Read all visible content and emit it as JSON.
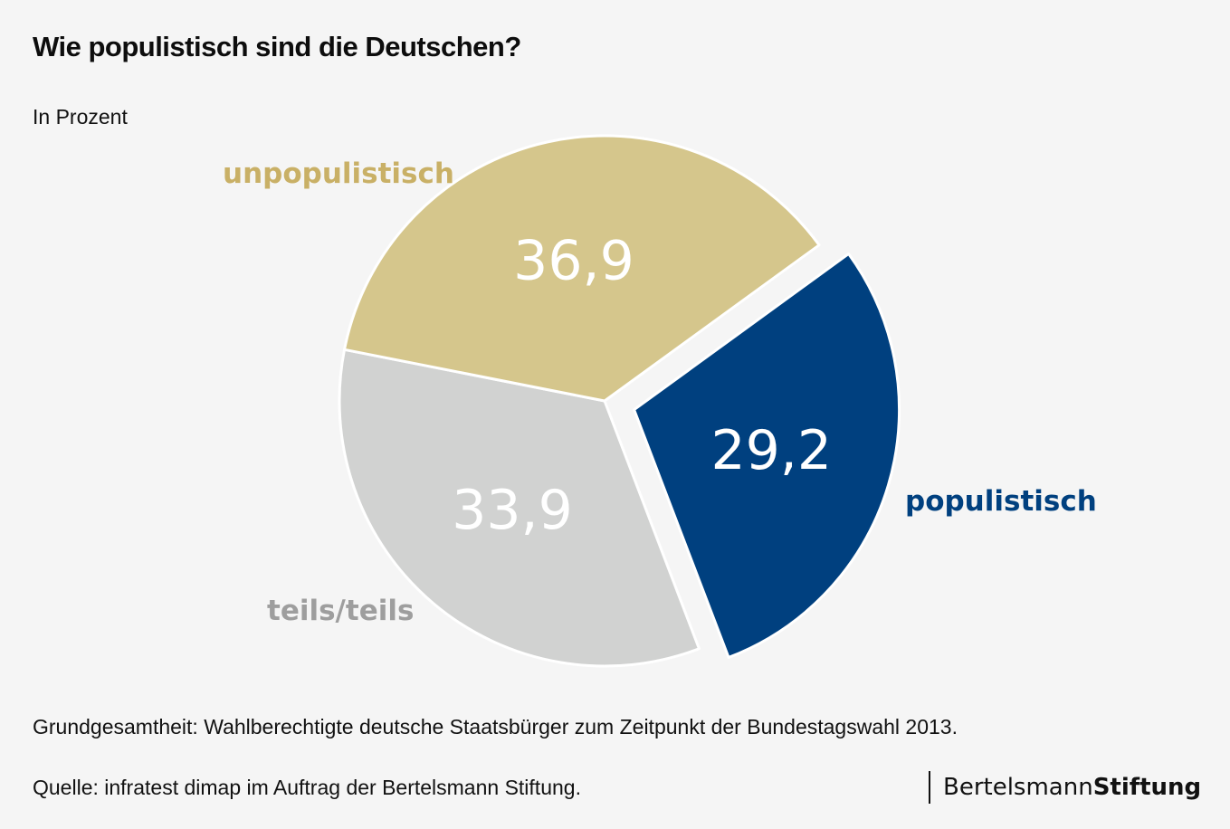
{
  "title": "Wie populistisch sind die Deutschen?",
  "subtitle": "In Prozent",
  "footnote": "Grundgesamtheit: Wahlberechtigte deutsche Staatsbürger zum Zeitpunkt der Bundestagswahl 2013.",
  "source": "Quelle: infratest dimap im Auftrag der Bertelsmann Stiftung.",
  "brand": {
    "part1": "Bertelsmann",
    "part2": "Stiftung"
  },
  "chart_data": {
    "type": "pie",
    "title": "Wie populistisch sind die Deutschen?",
    "subtitle": "In Prozent",
    "unit": "%",
    "slices": [
      {
        "name": "populistisch",
        "value": 29.2,
        "label": "29,2",
        "color": "#00407f",
        "exploded": true
      },
      {
        "name": "teils/teils",
        "value": 33.9,
        "label": "33,9",
        "color": "#d1d2d1",
        "label_color": "#9e9e9e",
        "exploded": false
      },
      {
        "name": "unpopulistisch",
        "value": 36.9,
        "label": "36,9",
        "color": "#d5c68c",
        "label_color": "#c9b066",
        "exploded": false
      }
    ]
  }
}
